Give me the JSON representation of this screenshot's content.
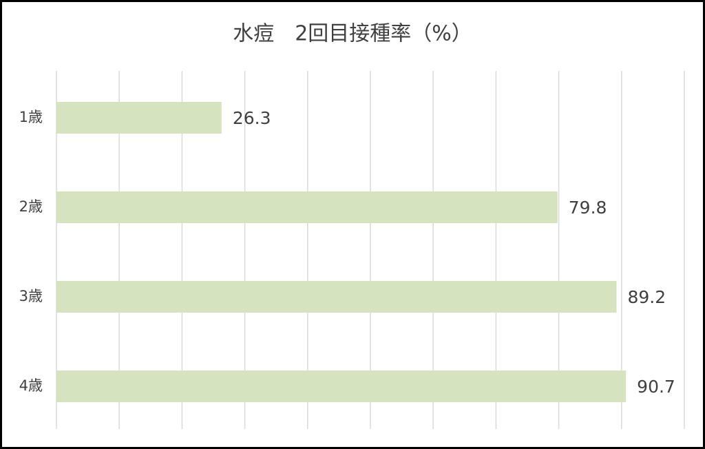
{
  "chart_data": {
    "type": "bar",
    "orientation": "horizontal",
    "title": "水痘　2回目接種率（%）",
    "categories": [
      "1歳",
      "2歳",
      "3歳",
      "4歳"
    ],
    "values": [
      26.3,
      79.8,
      89.2,
      90.7
    ],
    "color": "#d6e3bf",
    "xlim": [
      0,
      100
    ],
    "xticks": [
      0,
      10,
      20,
      30,
      40,
      50,
      60,
      70,
      80,
      90,
      100
    ],
    "grid": true
  }
}
